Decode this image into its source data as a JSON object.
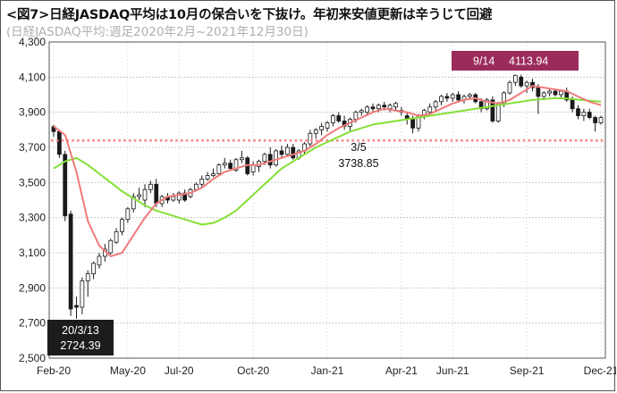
{
  "header": {
    "title": "<図7>日経JASDAQ平均は10月の保合いを下抜け。年初来安値更新は辛うじて回避",
    "subtitle": "(日経JASDAQ平均:週足2020年2月~2021年12月30日)"
  },
  "colors": {
    "candle_up_fill": "#ffffff",
    "candle_down_fill": "#1a1a1a",
    "candle_stroke": "#1a1a1a",
    "ma_short": "#f07a7a",
    "ma_long": "#84e036",
    "support_line": "#f48a8a",
    "box_high_bg": "#9b2b5a",
    "box_low_bg": "#1c1c1c"
  },
  "chart_data": {
    "type": "candlestick",
    "title": "<図7>日経JASDAQ平均は10月の保合いを下抜け。年初来安値更新は辛うじて回避",
    "subtitle": "(日経JASDAQ平均:週足2020年2月~2021年12月30日)",
    "y_ticks": [
      "2,500",
      "2,700",
      "2,900",
      "3,100",
      "3,300",
      "3,500",
      "3,700",
      "3,900",
      "4,100",
      "4,300"
    ],
    "ylim": [
      2500,
      4300
    ],
    "x_ticks": [
      {
        "label": "Feb-20",
        "week": 0
      },
      {
        "label": "May-20",
        "week": 13
      },
      {
        "label": "Jul-20",
        "week": 22
      },
      {
        "label": "Oct-20",
        "week": 35
      },
      {
        "label": "Jan-21",
        "week": 48
      },
      {
        "label": "Apr-21",
        "week": 61
      },
      {
        "label": "Jun-21",
        "week": 70
      },
      {
        "label": "Sep-21",
        "week": 83
      },
      {
        "label": "Dec-21",
        "week": 96
      }
    ],
    "candles": [
      [
        3818,
        3828,
        3760,
        3790
      ],
      [
        3790,
        3800,
        3640,
        3660
      ],
      [
        3660,
        3680,
        3280,
        3310
      ],
      [
        3320,
        3340,
        2740,
        2780
      ],
      [
        2800,
        2850,
        2725,
        2790
      ],
      [
        2790,
        2960,
        2750,
        2940
      ],
      [
        2940,
        3000,
        2850,
        2980
      ],
      [
        2980,
        3050,
        2950,
        3040
      ],
      [
        3030,
        3100,
        3010,
        3080
      ],
      [
        3080,
        3150,
        3050,
        3120
      ],
      [
        3100,
        3180,
        3090,
        3170
      ],
      [
        3160,
        3240,
        3150,
        3220
      ],
      [
        3220,
        3300,
        3200,
        3290
      ],
      [
        3290,
        3360,
        3270,
        3350
      ],
      [
        3350,
        3440,
        3330,
        3420
      ],
      [
        3420,
        3470,
        3400,
        3430
      ],
      [
        3400,
        3490,
        3360,
        3460
      ],
      [
        3460,
        3510,
        3440,
        3490
      ],
      [
        3490,
        3520,
        3360,
        3380
      ],
      [
        3380,
        3430,
        3360,
        3420
      ],
      [
        3420,
        3440,
        3380,
        3400
      ],
      [
        3400,
        3440,
        3390,
        3420
      ],
      [
        3400,
        3450,
        3380,
        3440
      ],
      [
        3440,
        3460,
        3390,
        3400
      ],
      [
        3420,
        3470,
        3410,
        3460
      ],
      [
        3460,
        3500,
        3450,
        3490
      ],
      [
        3490,
        3540,
        3470,
        3520
      ],
      [
        3520,
        3560,
        3510,
        3540
      ],
      [
        3540,
        3580,
        3530,
        3550
      ],
      [
        3550,
        3610,
        3540,
        3600
      ],
      [
        3600,
        3640,
        3580,
        3610
      ],
      [
        3610,
        3630,
        3570,
        3580
      ],
      [
        3570,
        3640,
        3560,
        3630
      ],
      [
        3630,
        3680,
        3610,
        3640
      ],
      [
        3640,
        3650,
        3540,
        3550
      ],
      [
        3560,
        3620,
        3540,
        3600
      ],
      [
        3590,
        3630,
        3560,
        3620
      ],
      [
        3620,
        3670,
        3600,
        3660
      ],
      [
        3660,
        3700,
        3580,
        3600
      ],
      [
        3600,
        3690,
        3590,
        3680
      ],
      [
        3680,
        3710,
        3640,
        3660
      ],
      [
        3660,
        3720,
        3650,
        3700
      ],
      [
        3700,
        3720,
        3630,
        3640
      ],
      [
        3640,
        3690,
        3630,
        3680
      ],
      [
        3680,
        3730,
        3660,
        3720
      ],
      [
        3720,
        3800,
        3700,
        3780
      ],
      [
        3780,
        3810,
        3750,
        3800
      ],
      [
        3800,
        3840,
        3770,
        3820
      ],
      [
        3810,
        3850,
        3790,
        3840
      ],
      [
        3840,
        3890,
        3820,
        3880
      ],
      [
        3880,
        3900,
        3840,
        3850
      ],
      [
        3850,
        3880,
        3800,
        3820
      ],
      [
        3820,
        3870,
        3790,
        3860
      ],
      [
        3860,
        3910,
        3840,
        3900
      ],
      [
        3900,
        3920,
        3880,
        3910
      ],
      [
        3900,
        3940,
        3880,
        3930
      ],
      [
        3930,
        3950,
        3900,
        3920
      ],
      [
        3920,
        3950,
        3900,
        3940
      ],
      [
        3940,
        3960,
        3910,
        3930
      ],
      [
        3920,
        3950,
        3900,
        3940
      ],
      [
        3930,
        3960,
        3910,
        3950
      ],
      [
        3910,
        3930,
        3880,
        3900
      ],
      [
        3880,
        3900,
        3830,
        3860
      ],
      [
        3860,
        3880,
        3780,
        3810
      ],
      [
        3810,
        3890,
        3790,
        3880
      ],
      [
        3880,
        3920,
        3860,
        3910
      ],
      [
        3900,
        3950,
        3890,
        3930
      ],
      [
        3930,
        3970,
        3910,
        3960
      ],
      [
        3960,
        4000,
        3940,
        3990
      ],
      [
        3990,
        4010,
        3960,
        3980
      ],
      [
        3980,
        4010,
        3960,
        4000
      ],
      [
        4000,
        4020,
        3960,
        3970
      ],
      [
        3970,
        4000,
        3950,
        3990
      ],
      [
        3990,
        4010,
        3970,
        4000
      ],
      [
        4000,
        4010,
        3950,
        3960
      ],
      [
        3960,
        3980,
        3900,
        3920
      ],
      [
        3920,
        3980,
        3910,
        3970
      ],
      [
        3970,
        3990,
        3840,
        3850
      ],
      [
        3850,
        3960,
        3840,
        3950
      ],
      [
        3950,
        4020,
        3930,
        4010
      ],
      [
        4010,
        4080,
        4000,
        4070
      ],
      [
        4070,
        4114,
        4050,
        4110
      ],
      [
        4100,
        4114,
        4040,
        4050
      ],
      [
        4050,
        4080,
        4010,
        4070
      ],
      [
        4070,
        4090,
        4020,
        4040
      ],
      [
        4040,
        4060,
        3890,
        3990
      ],
      [
        3990,
        4020,
        3970,
        4010
      ],
      [
        4010,
        4030,
        3990,
        4020
      ],
      [
        4020,
        4030,
        3990,
        4000
      ],
      [
        4000,
        4030,
        3980,
        4020
      ],
      [
        4020,
        4040,
        3960,
        3970
      ],
      [
        3970,
        3990,
        3900,
        3920
      ],
      [
        3920,
        3940,
        3860,
        3880
      ],
      [
        3880,
        3920,
        3850,
        3900
      ],
      [
        3900,
        3920,
        3860,
        3870
      ],
      [
        3870,
        3880,
        3790,
        3840
      ],
      [
        3840,
        3880,
        3830,
        3870
      ]
    ],
    "ma_short": [
      [
        0,
        3820
      ],
      [
        2,
        3770
      ],
      [
        4,
        3560
      ],
      [
        6,
        3280
      ],
      [
        8,
        3140
      ],
      [
        10,
        3080
      ],
      [
        12,
        3100
      ],
      [
        14,
        3200
      ],
      [
        16,
        3300
      ],
      [
        18,
        3380
      ],
      [
        20,
        3420
      ],
      [
        22,
        3430
      ],
      [
        24,
        3440
      ],
      [
        26,
        3470
      ],
      [
        28,
        3520
      ],
      [
        30,
        3560
      ],
      [
        32,
        3580
      ],
      [
        34,
        3600
      ],
      [
        36,
        3600
      ],
      [
        38,
        3620
      ],
      [
        40,
        3640
      ],
      [
        42,
        3660
      ],
      [
        44,
        3680
      ],
      [
        46,
        3720
      ],
      [
        48,
        3770
      ],
      [
        50,
        3810
      ],
      [
        52,
        3840
      ],
      [
        54,
        3870
      ],
      [
        56,
        3900
      ],
      [
        58,
        3920
      ],
      [
        60,
        3910
      ],
      [
        62,
        3900
      ],
      [
        64,
        3880
      ],
      [
        66,
        3890
      ],
      [
        68,
        3920
      ],
      [
        70,
        3950
      ],
      [
        72,
        3970
      ],
      [
        74,
        3980
      ],
      [
        76,
        3960
      ],
      [
        78,
        3950
      ],
      [
        80,
        3970
      ],
      [
        82,
        4010
      ],
      [
        84,
        4050
      ],
      [
        86,
        4040
      ],
      [
        88,
        4030
      ],
      [
        90,
        4020
      ],
      [
        92,
        3990
      ],
      [
        94,
        3960
      ],
      [
        96,
        3940
      ]
    ],
    "ma_long": [
      [
        0,
        3580
      ],
      [
        2,
        3620
      ],
      [
        4,
        3640
      ],
      [
        6,
        3600
      ],
      [
        8,
        3550
      ],
      [
        10,
        3500
      ],
      [
        12,
        3450
      ],
      [
        14,
        3410
      ],
      [
        16,
        3370
      ],
      [
        18,
        3340
      ],
      [
        20,
        3320
      ],
      [
        22,
        3300
      ],
      [
        24,
        3280
      ],
      [
        26,
        3260
      ],
      [
        28,
        3270
      ],
      [
        30,
        3300
      ],
      [
        32,
        3340
      ],
      [
        34,
        3400
      ],
      [
        36,
        3460
      ],
      [
        38,
        3520
      ],
      [
        40,
        3580
      ],
      [
        42,
        3620
      ],
      [
        44,
        3660
      ],
      [
        46,
        3700
      ],
      [
        48,
        3730
      ],
      [
        50,
        3760
      ],
      [
        52,
        3790
      ],
      [
        54,
        3810
      ],
      [
        56,
        3830
      ],
      [
        58,
        3840
      ],
      [
        60,
        3850
      ],
      [
        62,
        3860
      ],
      [
        64,
        3870
      ],
      [
        66,
        3880
      ],
      [
        68,
        3890
      ],
      [
        70,
        3900
      ],
      [
        72,
        3910
      ],
      [
        74,
        3920
      ],
      [
        76,
        3930
      ],
      [
        78,
        3940
      ],
      [
        80,
        3950
      ],
      [
        82,
        3960
      ],
      [
        84,
        3970
      ],
      [
        86,
        3975
      ],
      [
        88,
        3980
      ],
      [
        90,
        3978
      ],
      [
        92,
        3972
      ],
      [
        94,
        3966
      ],
      [
        96,
        3960
      ]
    ],
    "support_level": 3738.85,
    "annotations": {
      "high": {
        "line1": "9/14",
        "line2": "4113.94",
        "week": 81,
        "value": 4113.94
      },
      "mid": {
        "line1": "3/5",
        "line2": "3738.85",
        "week": 56,
        "value": 3738.85
      },
      "low": {
        "line1": "20/3/13",
        "line2": "2724.39",
        "week": 4,
        "value": 2724.39
      }
    }
  }
}
